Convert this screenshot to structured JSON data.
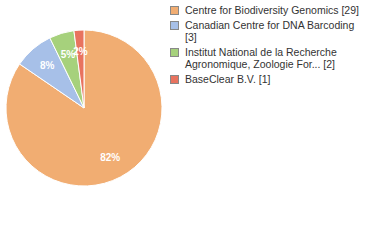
{
  "chart_data": {
    "type": "pie",
    "categories": [
      "Centre for Biodiversity Genomics [29]",
      "Canadian Centre for DNA Barcoding [3]",
      "Institut National de la Recherche Agronomique, Zoologie For... [2]",
      "BaseClear B.V. [1]"
    ],
    "values": [
      82,
      8,
      5,
      2
    ],
    "value_labels": [
      "82%",
      "8%",
      "5%",
      "2%"
    ],
    "colors": [
      "#f1ad72",
      "#a7c0e8",
      "#a6d17c",
      "#e8735f"
    ],
    "data_labels": true,
    "legend": "right"
  }
}
